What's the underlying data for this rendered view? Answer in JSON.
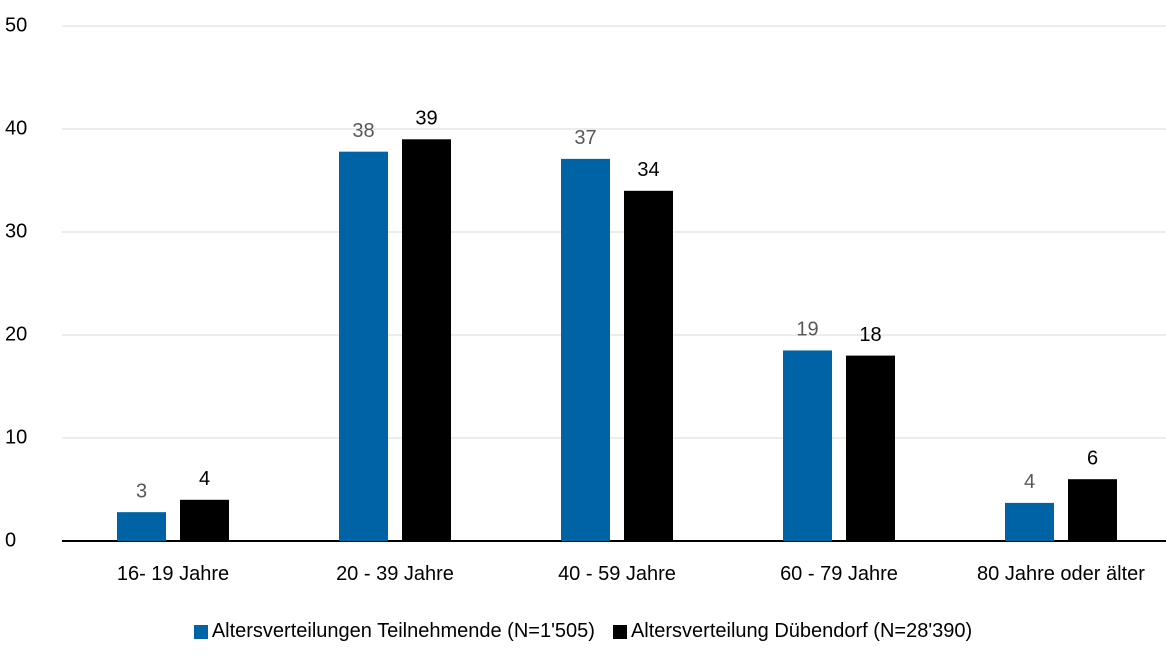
{
  "chart_data": {
    "type": "bar",
    "categories": [
      "16- 19 Jahre",
      "20 - 39 Jahre",
      "40 - 59 Jahre",
      "60 - 79 Jahre",
      "80 Jahre oder älter"
    ],
    "series": [
      {
        "name": "Altersverteilungen Teilnehmende (N=1'505)",
        "color": "#0063a6",
        "label_color": "#595959",
        "values": [
          2.8,
          37.8,
          37.1,
          18.5,
          3.7
        ],
        "value_labels": [
          "3",
          "38",
          "37",
          "19",
          "4"
        ]
      },
      {
        "name": "Altersverteilung Dübendorf (N=28'390)",
        "color": "#000000",
        "label_color": "#000000",
        "values": [
          4,
          39,
          34,
          18,
          6
        ]
      }
    ],
    "ylim": [
      0,
      50
    ],
    "yticks": [
      0,
      10,
      20,
      30,
      40,
      50
    ],
    "grid": true,
    "legend": "bottom"
  }
}
